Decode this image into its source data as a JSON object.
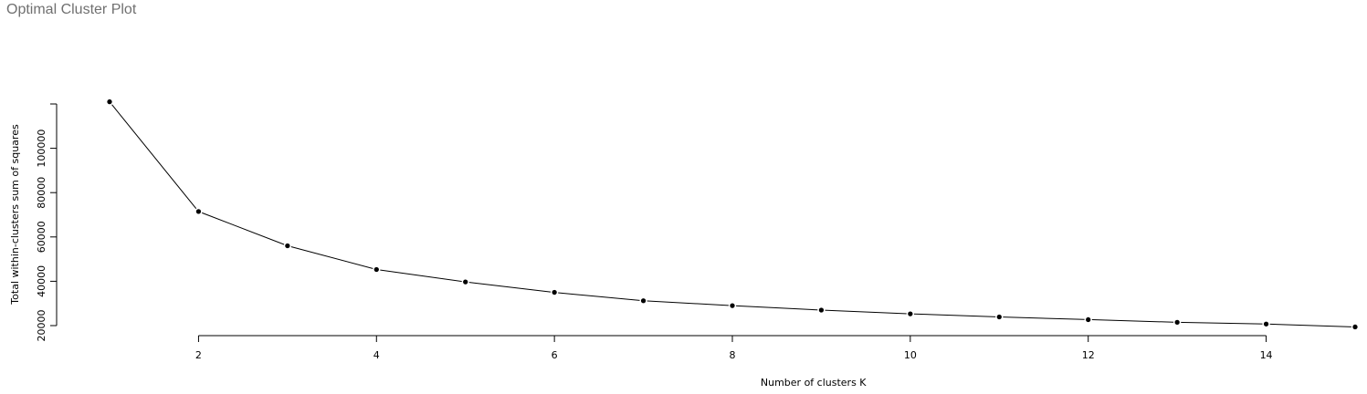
{
  "panel": {
    "title": "Optimal Cluster Plot"
  },
  "chart_data": {
    "type": "line",
    "title": "",
    "xlabel": "Number of clusters K",
    "ylabel": "Total within-clusters sum of squares",
    "x": [
      1,
      2,
      3,
      4,
      5,
      6,
      7,
      8,
      9,
      10,
      11,
      12,
      13,
      14,
      15
    ],
    "values": [
      121000,
      71500,
      56000,
      45300,
      39700,
      35000,
      31200,
      29000,
      27000,
      25300,
      23900,
      22700,
      21500,
      20700,
      19400
    ],
    "xlim": [
      1,
      15
    ],
    "ylim": [
      20000,
      120000
    ],
    "x_ticks": [
      2,
      4,
      6,
      8,
      10,
      12,
      14
    ],
    "y_ticks": [
      20000,
      40000,
      60000,
      80000,
      100000,
      120000
    ],
    "y_tick_labels": [
      "20000",
      "40000",
      "60000",
      "80000",
      "100000",
      ""
    ],
    "marker": "filled-circle",
    "line_color": "#000000"
  }
}
